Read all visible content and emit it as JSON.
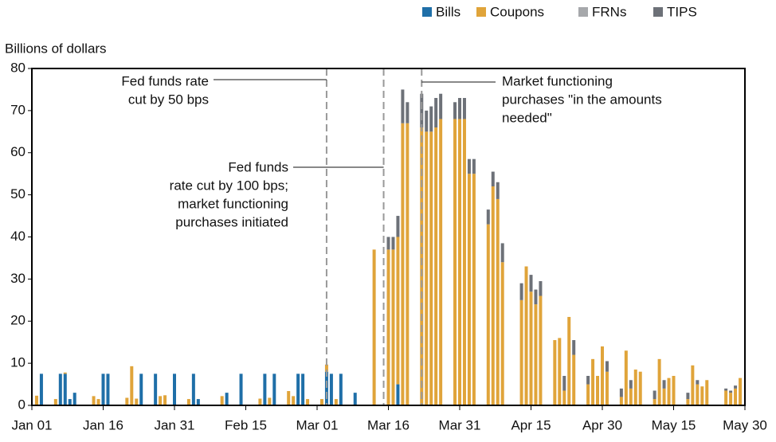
{
  "chart_data": {
    "type": "stacked_bar",
    "ylabel": "Billions of dollars",
    "x": [
      1,
      2,
      5,
      6,
      7,
      8,
      9,
      13,
      14,
      15,
      16,
      20,
      21,
      22,
      23,
      26,
      27,
      28,
      30,
      33,
      34,
      35,
      40,
      41,
      44,
      48,
      49,
      50,
      51,
      54,
      55,
      56,
      57,
      58,
      61,
      62,
      63,
      64,
      65,
      68,
      72,
      75,
      76,
      77,
      78,
      79,
      82,
      83,
      84,
      85,
      86,
      89,
      90,
      91,
      92,
      93,
      96,
      97,
      98,
      99,
      103,
      104,
      105,
      106,
      107,
      110,
      111,
      112,
      113,
      114,
      117,
      118,
      119,
      120,
      121,
      124,
      125,
      126,
      127,
      128,
      131,
      132,
      133,
      134,
      135,
      138,
      139,
      140,
      141,
      142,
      146,
      147,
      148,
      149
    ],
    "series": [
      {
        "name": "Bills",
        "color": "#1f6fa8",
        "values": [
          0,
          7.5,
          0,
          7.5,
          7.5,
          1.5,
          3,
          0,
          0,
          7.5,
          7.5,
          0,
          0,
          0,
          7.5,
          7.5,
          0,
          0,
          7.5,
          0,
          7.5,
          1.5,
          0,
          3,
          7.5,
          0,
          7.5,
          0,
          7.5,
          0,
          0,
          7.5,
          7.5,
          0,
          0,
          8,
          7.5,
          0,
          7.5,
          3,
          0,
          0,
          0,
          5,
          0,
          0,
          0,
          0,
          0,
          0,
          0,
          0,
          0,
          0,
          0,
          0,
          0,
          0,
          0,
          0,
          0,
          0,
          0,
          0,
          0,
          0,
          0,
          0,
          0,
          0,
          0,
          0,
          0,
          0,
          0,
          0,
          0,
          0,
          0,
          0,
          0,
          0,
          0,
          0,
          0,
          0,
          0,
          0,
          0,
          0,
          0,
          0,
          0,
          0
        ]
      },
      {
        "name": "Coupons",
        "color": "#e0a43a",
        "values": [
          2.3,
          0,
          1.5,
          0,
          0.3,
          0,
          0,
          2.2,
          1.5,
          0,
          0,
          1.8,
          9.3,
          1.6,
          0,
          0,
          2.2,
          2.4,
          0,
          1.5,
          0,
          0,
          2.2,
          0,
          0,
          1.6,
          0,
          1.8,
          0,
          3.4,
          2.2,
          0,
          0,
          1.5,
          1.5,
          1.7,
          0,
          1.5,
          0,
          0,
          37,
          37,
          37,
          35,
          67,
          67,
          66,
          65,
          65,
          66,
          68,
          68,
          68,
          68,
          55,
          55,
          43,
          52,
          49,
          34,
          25,
          33,
          27,
          24,
          26,
          15.5,
          16,
          3.5,
          21,
          12,
          5,
          11,
          7,
          14,
          8,
          2,
          13,
          4,
          8.5,
          8,
          1.5,
          11,
          4,
          6.5,
          7,
          1.5,
          9.5,
          5,
          4.5,
          6,
          3.5,
          3,
          4,
          6.5
        ]
      },
      {
        "name": "FRNs",
        "color": "#a6a8ab",
        "values": [
          0,
          0,
          0,
          0,
          0,
          0,
          0,
          0,
          0,
          0,
          0,
          0,
          0,
          0,
          0,
          0,
          0,
          0,
          0,
          0,
          0,
          0,
          0,
          0,
          0,
          0,
          0,
          0,
          0,
          0,
          0,
          0,
          0,
          0,
          0,
          0,
          0,
          0,
          0,
          0,
          0,
          0,
          0,
          0,
          0,
          0,
          0,
          0,
          0,
          0,
          0,
          0,
          0,
          0,
          0,
          0,
          0,
          0,
          0,
          0,
          0,
          0,
          0,
          0,
          0,
          0,
          0,
          0,
          0,
          0,
          0,
          0,
          0,
          0,
          0,
          0,
          0,
          0,
          0,
          0,
          0,
          0,
          0,
          0,
          0,
          0,
          0,
          0,
          0,
          0,
          0,
          0,
          0,
          0
        ]
      },
      {
        "name": "TIPS",
        "color": "#6d7178",
        "values": [
          0,
          0,
          0,
          0,
          0,
          0,
          0,
          0,
          0,
          0,
          0,
          0,
          0,
          0,
          0,
          0,
          0,
          0,
          0,
          0,
          0,
          0,
          0,
          0,
          0,
          0,
          0,
          0,
          0,
          0,
          0,
          0,
          0,
          0,
          0,
          0,
          0,
          0,
          0,
          0,
          0,
          3,
          3,
          5,
          8,
          5,
          8,
          5,
          6,
          7,
          6,
          4,
          5,
          5,
          3.5,
          3.5,
          3.5,
          3.5,
          4,
          4.5,
          4,
          0,
          4,
          3.5,
          3.5,
          0,
          0,
          3.5,
          0,
          3.5,
          2,
          0,
          0,
          0,
          2.5,
          2,
          0,
          2,
          0,
          0,
          2,
          0,
          2,
          0,
          0,
          1.5,
          0,
          1,
          0,
          0,
          0.5,
          0.5,
          0.7,
          0
        ]
      }
    ],
    "xlim": [
      0,
      150
    ],
    "xticks": [
      {
        "value": 0,
        "label": "Jan 01"
      },
      {
        "value": 15,
        "label": "Jan 16"
      },
      {
        "value": 30,
        "label": "Jan 31"
      },
      {
        "value": 45,
        "label": "Feb 15"
      },
      {
        "value": 60,
        "label": "Mar 01"
      },
      {
        "value": 75,
        "label": "Mar 16"
      },
      {
        "value": 90,
        "label": "Mar 31"
      },
      {
        "value": 105,
        "label": "Apr 15"
      },
      {
        "value": 120,
        "label": "Apr 30"
      },
      {
        "value": 135,
        "label": "May 15"
      },
      {
        "value": 150,
        "label": "May 30"
      }
    ],
    "ylim": [
      0,
      80
    ],
    "yticks": [
      0,
      10,
      20,
      30,
      40,
      50,
      60,
      70,
      80
    ],
    "annotations": [
      {
        "x": 62,
        "lines": [
          "Fed funds rate",
          "cut by 50 bps"
        ]
      },
      {
        "x": 74,
        "lines": [
          "Fed funds",
          "rate cut by 100 bps;",
          "market functioning",
          "purchases initiated"
        ]
      },
      {
        "x": 82,
        "lines": [
          "Market functioning",
          "purchases \"in the amounts",
          "needed\""
        ]
      }
    ]
  }
}
